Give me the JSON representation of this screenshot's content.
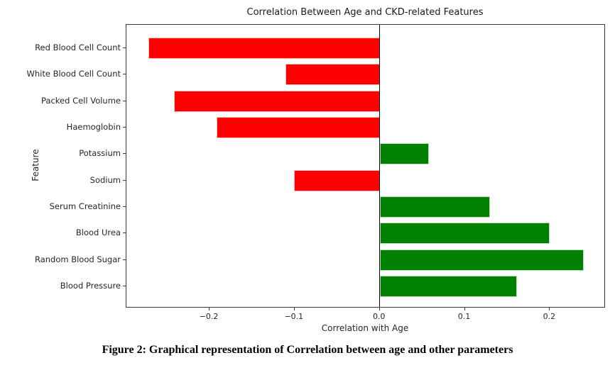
{
  "figure": {
    "caption": "Figure 2: Graphical representation of Correlation between age and other parameters"
  },
  "chart_data": {
    "type": "bar",
    "orientation": "horizontal",
    "title": "Correlation Between Age and CKD-related Features",
    "xlabel": "Correlation with Age",
    "ylabel": "Feature",
    "categories": [
      "Red Blood Cell Count",
      "White Blood Cell Count",
      "Packed Cell Volume",
      "Haemoglobin",
      "Potassium",
      "Sodium",
      "Serum Creatinine",
      "Blood Urea",
      "Random Blood Sugar",
      "Blood Pressure"
    ],
    "values": [
      -0.272,
      -0.111,
      -0.242,
      -0.192,
      0.058,
      -0.101,
      0.13,
      0.2,
      0.24,
      0.161
    ],
    "negative_color": "#ff0000",
    "positive_color": "#008000",
    "xlim": [
      -0.2976,
      0.2656
    ],
    "xticks": [
      -0.2,
      -0.1,
      0.0,
      0.1,
      0.2
    ],
    "xtick_labels": [
      "−0.2",
      "−0.1",
      "0.0",
      "0.1",
      "0.2"
    ],
    "zero_line": true,
    "grid": false,
    "legend": false
  }
}
